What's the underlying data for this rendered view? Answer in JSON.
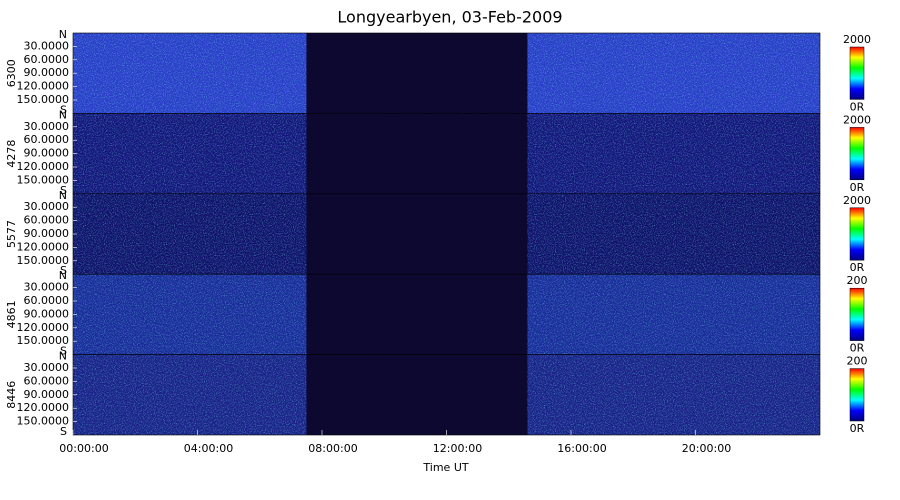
{
  "chart_data": {
    "type": "keogram",
    "title": "Longyearbyen, 03-Feb-2009",
    "xlabel": "Time UT",
    "xlim": [
      0,
      24
    ],
    "xticks": [
      {
        "value": 0,
        "label": "00:00:00"
      },
      {
        "value": 4,
        "label": "04:00:00"
      },
      {
        "value": 8,
        "label": "08:00:00"
      },
      {
        "value": 12,
        "label": "12:00:00"
      },
      {
        "value": 16,
        "label": "16:00:00"
      },
      {
        "value": 20,
        "label": "20:00:00"
      }
    ],
    "no_data": [
      7.5,
      14.6
    ],
    "ylim": [
      0,
      180
    ],
    "yends": [
      "N",
      "S"
    ],
    "yticks": [
      {
        "value": 30,
        "label": "30.0000"
      },
      {
        "value": 60,
        "label": "60.0000"
      },
      {
        "value": 90,
        "label": "90.0000"
      },
      {
        "value": 120,
        "label": "120.0000"
      },
      {
        "value": 150,
        "label": "150.0000"
      }
    ],
    "panels": [
      {
        "name": "6300",
        "color": "#2a3cc8",
        "clim": [
          0,
          2000
        ],
        "cticks": [
          {
            "value": 0,
            "label": "0R"
          },
          2000
        ]
      },
      {
        "name": "4278",
        "color": "#14147a",
        "clim": [
          0,
          2000
        ],
        "cticks": [
          {
            "value": 0,
            "label": "0R"
          },
          2000
        ]
      },
      {
        "name": "5577",
        "color": "#10106a",
        "clim": [
          0,
          2000
        ],
        "cticks": [
          {
            "value": 0,
            "label": "0R"
          },
          2000
        ]
      },
      {
        "name": "4861",
        "color": "#1a2a9a",
        "clim": [
          0,
          200
        ],
        "cticks": [
          {
            "value": 0,
            "label": "0R"
          },
          200
        ]
      },
      {
        "name": "8446",
        "color": "#1a2088",
        "clim": [
          0,
          200
        ],
        "cticks": [
          {
            "value": 0,
            "label": "0R"
          },
          200
        ]
      }
    ]
  }
}
